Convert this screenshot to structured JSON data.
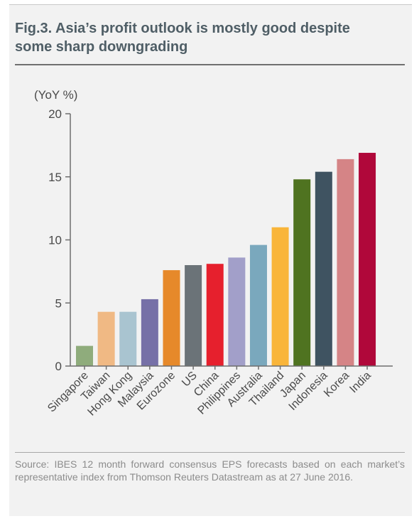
{
  "figure": {
    "title": "Fig.3. Asia’s profit outlook is mostly good despite some sharp downgrading",
    "source": "Source: IBES 12 month forward consensus EPS forecasts based on each market’s representative index from Thomson Reuters Datastream as at 27 June 2016."
  },
  "chart_data": {
    "type": "bar",
    "title": "Fig.3. Asia’s profit outlook is mostly good despite some sharp downgrading",
    "xlabel": "",
    "ylabel": "(YoY %)",
    "ylim": [
      0,
      20
    ],
    "yticks": [
      0,
      5,
      10,
      15,
      20
    ],
    "grid": false,
    "legend": "none",
    "categories": [
      "Singapore",
      "Taiwan",
      "Hong Kong",
      "Malaysia",
      "Eurozone",
      "US",
      "China",
      "Philippines",
      "Australia",
      "Thailand",
      "Japan",
      "Indonesia",
      "Korea",
      "India"
    ],
    "values": [
      1.6,
      4.3,
      4.3,
      5.3,
      7.6,
      8.0,
      8.1,
      8.6,
      9.6,
      11.0,
      14.8,
      15.4,
      16.4,
      16.9
    ],
    "colors": [
      "#8fac7c",
      "#f0b984",
      "#a9c4d0",
      "#7670a7",
      "#e6892a",
      "#6b7378",
      "#e6202d",
      "#a29fc9",
      "#7aa8bd",
      "#f9b53a",
      "#4f7320",
      "#3f5361",
      "#d58486",
      "#b0083a"
    ]
  }
}
